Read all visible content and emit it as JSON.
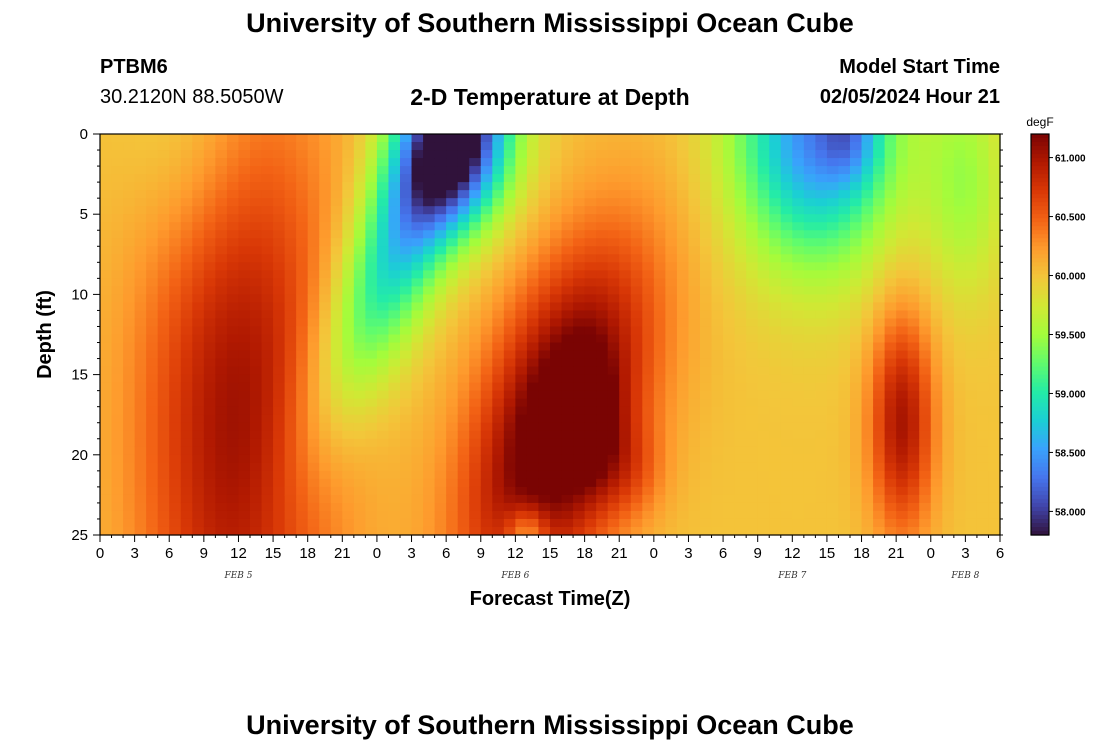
{
  "header": {
    "title": "University of Southern Mississippi Ocean Cube",
    "station": "PTBM6",
    "coords": "30.2120N  88.5050W",
    "subtitle": "2-D Temperature at Depth",
    "model_start_label": "Model Start Time",
    "model_start_value": "02/05/2024 Hour 21"
  },
  "footer": {
    "title": "University of Southern Mississippi Ocean Cube"
  },
  "chart_data": {
    "type": "heatmap",
    "title": "2-D Temperature at Depth",
    "xlabel": "Forecast Time(Z)",
    "ylabel": "Depth (ft)",
    "x_range_hours": [
      0,
      78
    ],
    "y_range": [
      0,
      25
    ],
    "x_tick_labels": [
      "0",
      "3",
      "6",
      "9",
      "12",
      "15",
      "18",
      "21",
      "0",
      "3",
      "6",
      "9",
      "12",
      "15",
      "18",
      "21",
      "0",
      "3",
      "6",
      "9",
      "12",
      "15",
      "18",
      "21",
      "0",
      "3",
      "6"
    ],
    "y_tick_labels": [
      "0",
      "5",
      "10",
      "15",
      "20",
      "25"
    ],
    "date_labels": [
      {
        "label": "FEB 5",
        "hour": 12
      },
      {
        "label": "FEB 6",
        "hour": 36
      },
      {
        "label": "FEB 7",
        "hour": 60
      },
      {
        "label": "FEB 8",
        "hour": 75
      }
    ],
    "colorbar": {
      "unit": "degF",
      "min": 57.8,
      "max": 61.2,
      "ticks": [
        "58.000",
        "58.500",
        "59.000",
        "59.500",
        "60.000",
        "60.500",
        "61.000"
      ],
      "tick_values": [
        58.0,
        58.5,
        59.0,
        59.5,
        60.0,
        60.5,
        61.0
      ],
      "colors": [
        "#30123b",
        "#4145ab",
        "#4675ed",
        "#39a2fc",
        "#1bcfd4",
        "#24eca6",
        "#61fc6c",
        "#a4fc3b",
        "#d1e834",
        "#f3c63a",
        "#fe9b2d",
        "#f36315",
        "#d93806",
        "#b11901",
        "#7a0403"
      ]
    },
    "grid": false
  }
}
